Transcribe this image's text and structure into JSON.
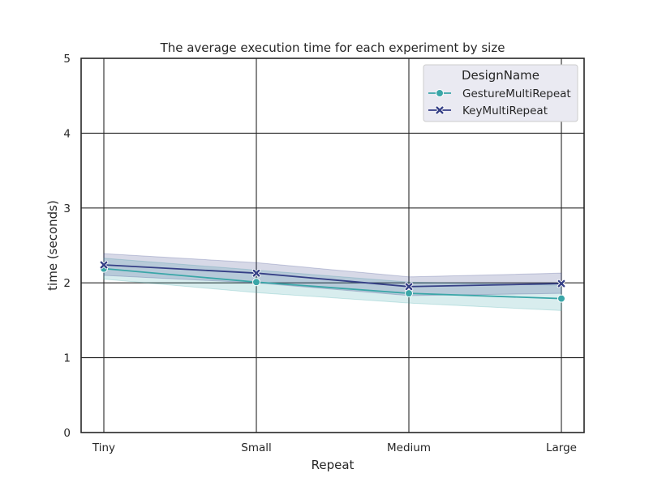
{
  "chart_data": {
    "type": "line",
    "title": "The average execution time for each experiment by size",
    "xlabel": "Repeat",
    "ylabel": "time (seconds)",
    "categories": [
      "Tiny",
      "Small",
      "Medium",
      "Large"
    ],
    "ylim": [
      0,
      5
    ],
    "yticks": [
      "0",
      "1",
      "2",
      "3",
      "4",
      "5"
    ],
    "grid": true,
    "legend": {
      "title": "DesignName",
      "placement": "top-right"
    },
    "series": [
      {
        "name": "GestureMultiRepeat",
        "color": "#3aa6a8",
        "marker": "circle",
        "values": [
          2.19,
          2.01,
          1.86,
          1.79
        ],
        "ci_lower": [
          2.05,
          1.87,
          1.73,
          1.63
        ],
        "ci_upper": [
          2.33,
          2.17,
          2.01,
          1.97
        ]
      },
      {
        "name": "KeyMultiRepeat",
        "color": "#353f86",
        "marker": "x",
        "values": [
          2.24,
          2.13,
          1.95,
          1.99
        ],
        "ci_lower": [
          2.1,
          2.0,
          1.83,
          1.86
        ],
        "ci_upper": [
          2.39,
          2.27,
          2.08,
          2.13
        ]
      }
    ]
  }
}
